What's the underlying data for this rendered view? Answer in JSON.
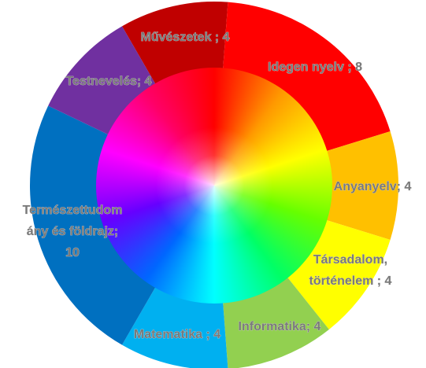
{
  "chart_data": {
    "type": "donut",
    "values": [
      4,
      8,
      4,
      4,
      4,
      4,
      10,
      4
    ],
    "value_labels": [
      "Művészetek ; 4",
      "Idegen nyelv ; 8",
      "Anyanyelv; 4",
      "Társadalom,\ntörténelem ; 4",
      "Informatika; 4",
      "Matematika ; 4",
      "Természettudom\nány és földrajz;\n10",
      "Testnevelés; 4"
    ],
    "colors": [
      "#c00000",
      "#ff0000",
      "#ffc000",
      "#ffff00",
      "#92d050",
      "#00b0f0",
      "#0070c0",
      "#7030a0"
    ]
  }
}
